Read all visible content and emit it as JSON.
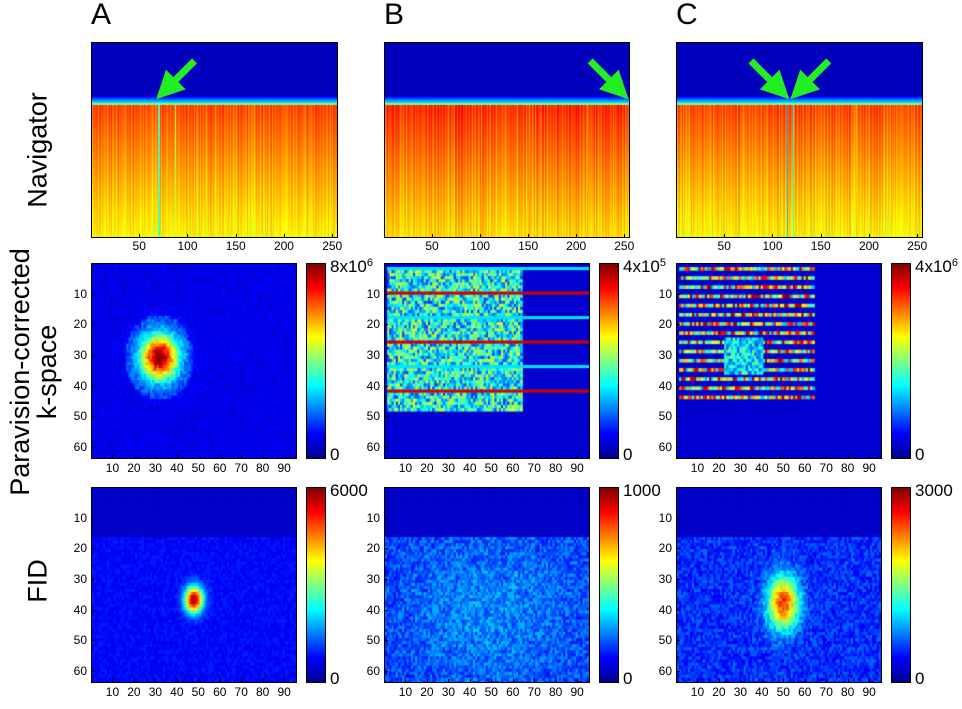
{
  "columns": [
    {
      "id": "A",
      "label": "A"
    },
    {
      "id": "B",
      "label": "B"
    },
    {
      "id": "C",
      "label": "C"
    }
  ],
  "rows": {
    "navigator": "Navigator",
    "kspace": "Paravision-corrected\nk-space",
    "fid": "FID"
  },
  "navigator_axis": {
    "ticks": [
      50,
      100,
      150,
      200,
      250
    ],
    "range": [
      0,
      256
    ]
  },
  "image_axes": {
    "x_ticks": [
      10,
      20,
      30,
      40,
      50,
      60,
      70,
      80,
      90
    ],
    "y_ticks": [
      10,
      20,
      30,
      40,
      50,
      60
    ],
    "x_range": [
      0,
      96
    ],
    "y_range": [
      0,
      64
    ]
  },
  "colorbars": {
    "kspace": [
      {
        "max": "8x10",
        "exp": "6",
        "min": "0"
      },
      {
        "max": "4x10",
        "exp": "5",
        "min": "0"
      },
      {
        "max": "4x10",
        "exp": "6",
        "min": "0"
      }
    ],
    "fid": [
      {
        "max": "6000",
        "min": "0"
      },
      {
        "max": "1000",
        "min": "0"
      },
      {
        "max": "3000",
        "min": "0"
      }
    ]
  },
  "annotations": {
    "arrow_color": "#22ee22",
    "navigator_arrows": [
      {
        "column": "A",
        "x_value": 70
      },
      {
        "column": "B",
        "x_value": 252
      },
      {
        "column": "C",
        "x_value": 115
      },
      {
        "column": "C",
        "x_value": 121
      }
    ]
  },
  "colormap": "jet"
}
